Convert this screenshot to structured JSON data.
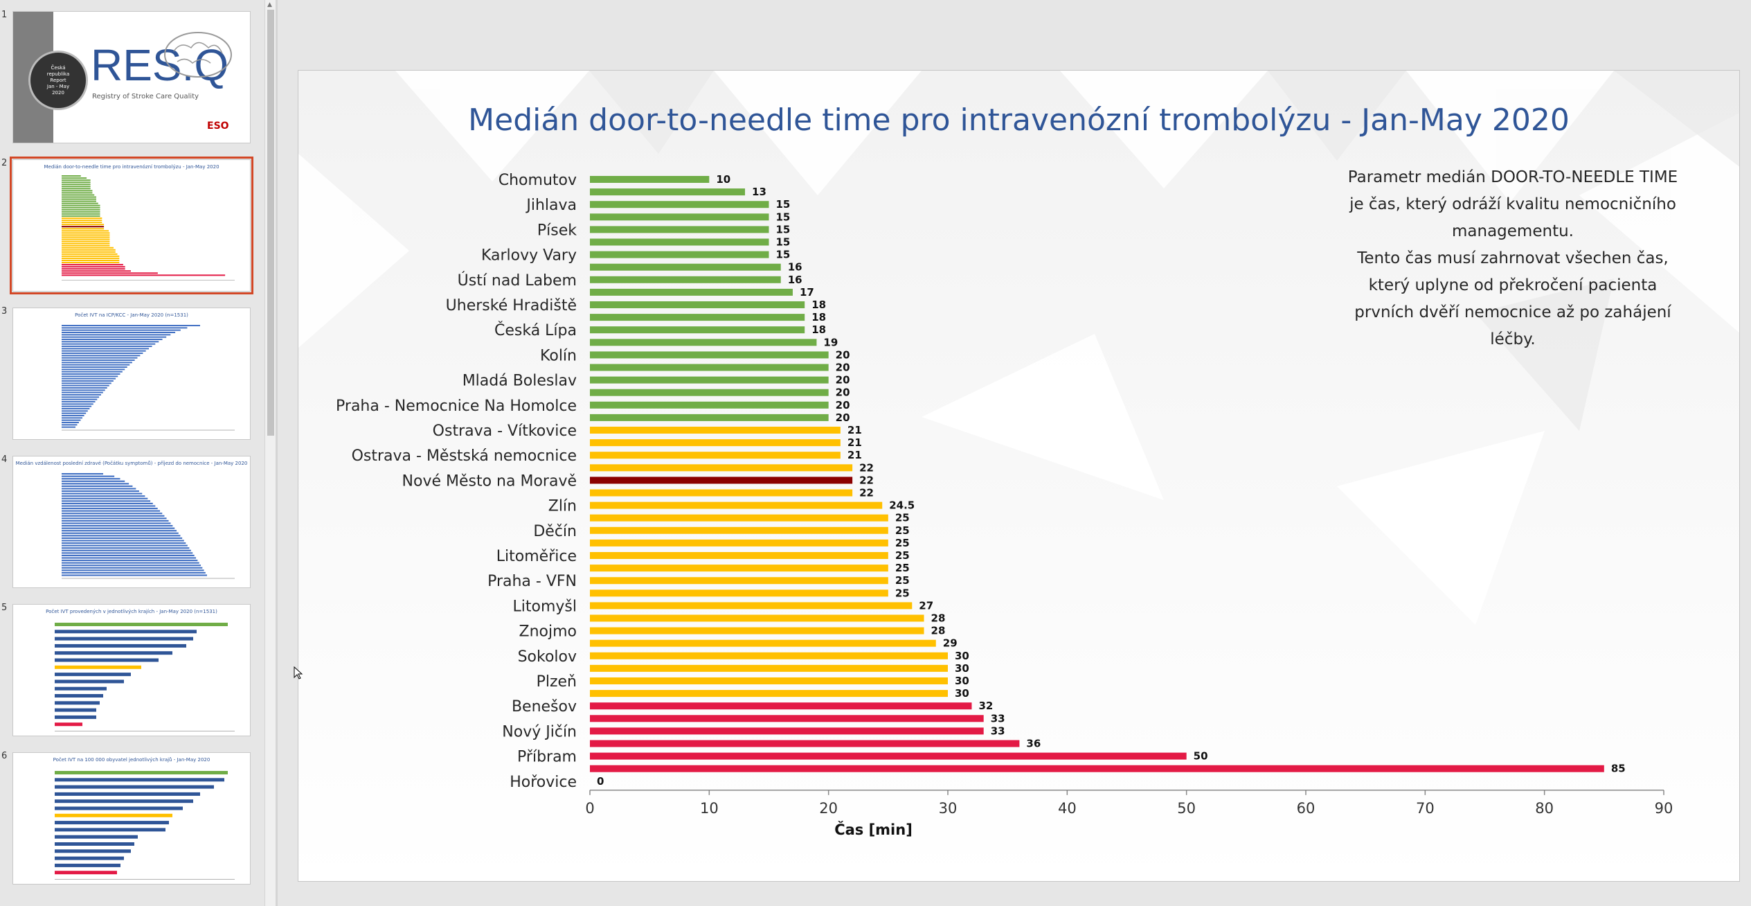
{
  "thumbnails": [
    {
      "number": "1",
      "brand": "RES.Q",
      "subtitle": "Registry of Stroke Care Quality",
      "badge_lines": [
        "Česká",
        "republika",
        "Report",
        "Jan - May",
        "2020"
      ],
      "logo": "ESO"
    },
    {
      "number": "2",
      "title": "Medián door-to-needle time pro intravenózní trombolýzu - Jan-May 2020"
    },
    {
      "number": "3",
      "title": "Počet IVT na ICP/KCC - Jan-May 2020 (n=1531)"
    },
    {
      "number": "4",
      "title": "Medián vzdálenost poslední zdravé (Počátku symptomů) - příjezd do nemocnice - Jan-May 2020"
    },
    {
      "number": "5",
      "title": "Počet IVT provedených v jednotlivých krajích - Jan-May 2020 (n=1531)"
    },
    {
      "number": "6",
      "title": "Počet IVT na 100 000 obyvatel jednotlivých krajů - Jan-May 2020"
    }
  ],
  "slide": {
    "title": "Medián door-to-needle time pro intravenózní trombolýzu - Jan-May 2020",
    "description": [
      "Parametr medián DOOR-TO-NEEDLE TIME je čas, který odráží kvalitu nemocničního managementu.",
      "Tento čas musí zahrnovat všechen čas, který uplyne od překročení pacienta prvních dvěří nemocnice až po zahájení léčby."
    ]
  },
  "colors": {
    "green": "#70ad47",
    "yellow": "#ffc000",
    "dark_red": "#8b0000",
    "red": "#e31a45",
    "title_blue": "#2f5597"
  },
  "chart_data": {
    "type": "bar",
    "orientation": "horizontal",
    "title": "Medián door-to-needle time pro intravenózní trombolýzu - Jan-May 2020",
    "xlabel": "Čas [min]",
    "ylabel": "",
    "xlim": [
      0,
      90
    ],
    "xticks": [
      0,
      10,
      20,
      30,
      40,
      50,
      60,
      70,
      80,
      90
    ],
    "grid": false,
    "legend": "none",
    "category_labels": [
      "Chomutov",
      "Jihlava",
      "Písek",
      "Karlovy Vary",
      "Ústí nad Labem",
      "Uherské Hradiště",
      "Česká Lípa",
      "Kolín",
      "Mladá Boleslav",
      "Praha - Nemocnice Na Homolce",
      "Ostrava - Vítkovice",
      "Ostrava - Městská nemocnice",
      "Nové Město na Moravě",
      "Zlín",
      "Děčín",
      "Litoměřice",
      "Praha - VFN",
      "Litomyšl",
      "Znojmo",
      "Sokolov",
      "Plzeň",
      "Benešov",
      "Nový Jičín",
      "Příbram",
      "Hořovice"
    ],
    "label_every": 2,
    "values": [
      10,
      13,
      15,
      15,
      15,
      15,
      15,
      16,
      16,
      17,
      18,
      18,
      18,
      19,
      20,
      20,
      20,
      20,
      20,
      20,
      21,
      21,
      21,
      22,
      22,
      22,
      24.5,
      25,
      25,
      25,
      25,
      25,
      25,
      25,
      27,
      28,
      28,
      29,
      30,
      30,
      30,
      30,
      32,
      33,
      33,
      36,
      50,
      85,
      0
    ],
    "value_labels": [
      "10",
      "13",
      "15",
      "15",
      "15",
      "15",
      "15",
      "16",
      "16",
      "17",
      "18",
      "18",
      "18",
      "19",
      "20",
      "20",
      "20",
      "20",
      "20",
      "20",
      "21",
      "21",
      "21",
      "22",
      "22",
      "22",
      "24.5",
      "25",
      "25",
      "25",
      "25",
      "25",
      "25",
      "25",
      "27",
      "28",
      "28",
      "29",
      "30",
      "30",
      "30",
      "30",
      "32",
      "33",
      "33",
      "36",
      "50",
      "85",
      "0"
    ],
    "bar_colors": [
      "green",
      "green",
      "green",
      "green",
      "green",
      "green",
      "green",
      "green",
      "green",
      "green",
      "green",
      "green",
      "green",
      "green",
      "green",
      "green",
      "green",
      "green",
      "green",
      "green",
      "yellow",
      "yellow",
      "yellow",
      "yellow",
      "dark_red",
      "yellow",
      "yellow",
      "yellow",
      "yellow",
      "yellow",
      "yellow",
      "yellow",
      "yellow",
      "yellow",
      "yellow",
      "yellow",
      "yellow",
      "yellow",
      "yellow",
      "yellow",
      "yellow",
      "yellow",
      "red",
      "red",
      "red",
      "red",
      "red",
      "red",
      "red"
    ]
  }
}
